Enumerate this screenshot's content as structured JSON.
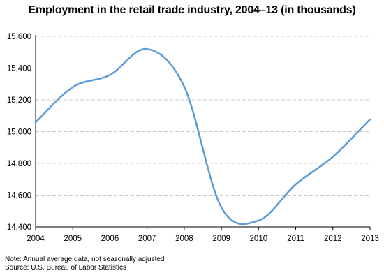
{
  "chart_data": {
    "type": "line",
    "title": "Employment in the retail trade industry, 2004–13 (in thousands)",
    "x": [
      2004,
      2005,
      2006,
      2007,
      2008,
      2009,
      2010,
      2011,
      2012,
      2013
    ],
    "series": [
      {
        "values": [
          15058,
          15280,
          15357,
          15520,
          15283,
          14522,
          14440,
          14668,
          14842,
          15077
        ]
      }
    ],
    "ylim": [
      14400,
      15600
    ],
    "yticks": [
      14400,
      14600,
      14800,
      15000,
      15200,
      15400,
      15600
    ],
    "ytick_labels": [
      "14,400",
      "14,600",
      "14,800",
      "15,000",
      "15,200",
      "15,400",
      "15,600"
    ],
    "xtick_labels": [
      "2004",
      "2005",
      "2006",
      "2007",
      "2008",
      "2009",
      "2010",
      "2011",
      "2012",
      "2013"
    ],
    "grid": true,
    "line_color": "#5b9bd5",
    "grid_color": "#c8c8c8"
  },
  "note": "Note: Annual average data, not seasonally adjusted",
  "source": "Source: U.S. Bureau of Labor Statistics"
}
